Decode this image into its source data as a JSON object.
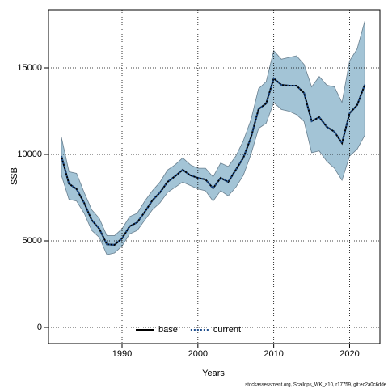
{
  "chart_data": {
    "type": "line",
    "x_label": "Years",
    "y_label": "SSB",
    "footnote": "stockassessment.org, Scallops_WK_a10, r17759, git:ec2a0c6dde",
    "x": [
      1982,
      1983,
      1984,
      1985,
      1986,
      1987,
      1988,
      1989,
      1990,
      1991,
      1992,
      1993,
      1994,
      1995,
      1996,
      1997,
      1998,
      1999,
      2000,
      2001,
      2002,
      2003,
      2004,
      2005,
      2006,
      2007,
      2008,
      2009,
      2010,
      2011,
      2012,
      2013,
      2014,
      2015,
      2016,
      2017,
      2018,
      2019,
      2020,
      2021,
      2022
    ],
    "band": {
      "color": "#a3c4d6",
      "edge": "#6a8090",
      "upper": [
        11000,
        9000,
        8900,
        7800,
        6800,
        6300,
        5300,
        5300,
        5700,
        6400,
        6600,
        7300,
        7900,
        8400,
        9100,
        9400,
        9800,
        9400,
        9200,
        9200,
        8700,
        9500,
        9300,
        9900,
        10800,
        12000,
        13800,
        14200,
        16000,
        15500,
        15600,
        15700,
        15200,
        13900,
        14500,
        14000,
        13900,
        13000,
        15400,
        16100,
        17700
      ],
      "lower": [
        8800,
        7400,
        7300,
        6600,
        5600,
        5200,
        4200,
        4300,
        4700,
        5400,
        5600,
        6200,
        6800,
        7200,
        7800,
        8100,
        8400,
        8200,
        8000,
        7900,
        7300,
        7900,
        7600,
        8100,
        8800,
        10000,
        11500,
        11800,
        13000,
        12600,
        12500,
        12300,
        11900,
        10100,
        10200,
        9600,
        9200,
        8500,
        9900,
        10300,
        11100
      ]
    },
    "series": [
      {
        "name": "base",
        "color": "#000000",
        "dash": "solid",
        "values": [
          9900,
          8300,
          8000,
          7200,
          6200,
          5700,
          4800,
          4770,
          5140,
          5840,
          6070,
          6680,
          7340,
          7800,
          8410,
          8740,
          9110,
          8790,
          8640,
          8550,
          8040,
          8640,
          8410,
          9110,
          9810,
          10980,
          12620,
          12940,
          14390,
          14020,
          13970,
          13970,
          13550,
          11920,
          12150,
          11590,
          11310,
          10650,
          12380,
          12850,
          14020
        ]
      },
      {
        "name": "current",
        "color": "#1f4e8c",
        "dash": "dotted",
        "values": [
          9900,
          8300,
          8000,
          7200,
          6200,
          5700,
          4800,
          4770,
          5140,
          5840,
          6070,
          6680,
          7340,
          7800,
          8410,
          8740,
          9110,
          8790,
          8640,
          8550,
          8040,
          8640,
          8410,
          9110,
          9810,
          10980,
          12620,
          12940,
          14390,
          14020,
          13970,
          13970,
          13550,
          11920,
          12150,
          11590,
          11310,
          10650,
          12380,
          12850,
          14020
        ]
      }
    ],
    "xlim": [
      1980.3,
      2024
    ],
    "ylim": [
      -935,
      18364
    ],
    "xticks": [
      1990,
      2000,
      2010,
      2020
    ],
    "yticks": [
      0,
      5000,
      10000,
      15000
    ],
    "grid": true,
    "legend": "bottom"
  }
}
